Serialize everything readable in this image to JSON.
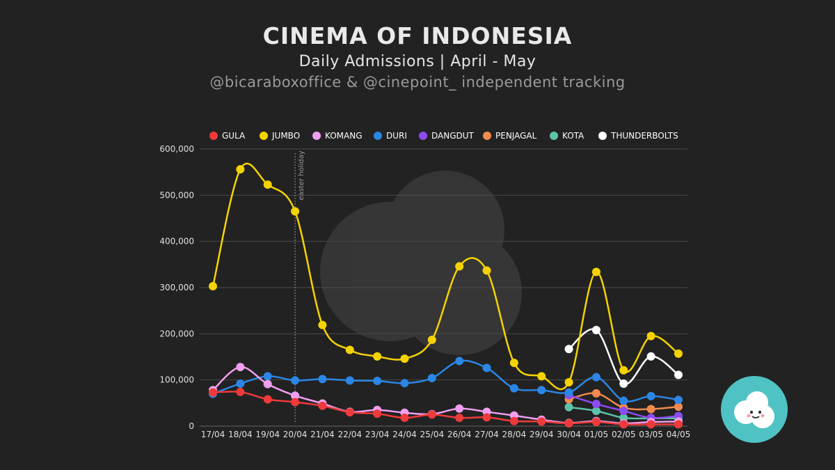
{
  "header": {
    "title": "CINEMA OF INDONESIA",
    "subtitle": "Daily Admissions | April - May",
    "credit": "@bicaraboxoffice & @cinepoint_ independent tracking"
  },
  "colors": {
    "background": "#222222",
    "grid": "#4a4a4a",
    "logo": "#4fc3c3"
  },
  "chart_data": {
    "type": "line",
    "categories": [
      "17/04",
      "18/04",
      "19/04",
      "20/04",
      "21/04",
      "22/04",
      "23/04",
      "24/04",
      "25/04",
      "26/04",
      "27/04",
      "28/04",
      "29/04",
      "30/04",
      "01/05",
      "02/05",
      "03/05",
      "04/05"
    ],
    "ylim": [
      0,
      600000
    ],
    "yticks": [
      0,
      100000,
      200000,
      300000,
      400000,
      500000,
      600000
    ],
    "ytick_labels": [
      "0",
      "100,000",
      "200,000",
      "300,000",
      "400,000",
      "500,000",
      "600,000"
    ],
    "grid": true,
    "legend": "top",
    "annotations": [
      {
        "x": "20/04",
        "label": "easter holiday",
        "style": "dotted-vertical-line"
      }
    ],
    "series": [
      {
        "name": "GULA",
        "color": "#ee3a3a",
        "values": [
          73000,
          74000,
          58000,
          52000,
          44000,
          30000,
          27000,
          18000,
          25000,
          18000,
          19000,
          11000,
          10000,
          6000,
          9000,
          4000,
          4000,
          4000
        ]
      },
      {
        "name": "JUMBO",
        "color": "#f5d300",
        "values": [
          303000,
          556000,
          523000,
          465000,
          219000,
          165000,
          151000,
          146000,
          187000,
          346000,
          337000,
          137000,
          108000,
          95000,
          334000,
          121000,
          195000,
          157000
        ]
      },
      {
        "name": "KOMANG",
        "color": "#f09ff0",
        "values": [
          78000,
          128000,
          91000,
          66000,
          49000,
          31000,
          35000,
          29000,
          26000,
          38000,
          31000,
          23000,
          14000,
          7000,
          11000,
          6000,
          9000,
          10000
        ]
      },
      {
        "name": "DURI",
        "color": "#2b86e6",
        "values": [
          70000,
          92000,
          108000,
          99000,
          102000,
          99000,
          98000,
          93000,
          104000,
          141000,
          126000,
          82000,
          78000,
          73000,
          106000,
          55000,
          65000,
          57000
        ]
      },
      {
        "name": "DANGDUT",
        "color": "#8b4cf0",
        "values": [
          null,
          null,
          null,
          null,
          null,
          null,
          null,
          null,
          null,
          null,
          null,
          null,
          null,
          67000,
          48000,
          33000,
          18000,
          22000
        ]
      },
      {
        "name": "PENJAGAL",
        "color": "#f28a4e",
        "values": [
          null,
          null,
          null,
          null,
          null,
          null,
          null,
          null,
          null,
          null,
          null,
          null,
          null,
          58000,
          71000,
          40000,
          37000,
          42000
        ]
      },
      {
        "name": "KOTA",
        "color": "#5cc3aa",
        "values": [
          null,
          null,
          null,
          null,
          null,
          null,
          null,
          null,
          null,
          null,
          null,
          null,
          null,
          41000,
          33000,
          18000,
          17000,
          17000
        ]
      },
      {
        "name": "THUNDERBOLTS",
        "color": "#ffffff",
        "values": [
          null,
          null,
          null,
          null,
          null,
          null,
          null,
          null,
          null,
          null,
          null,
          null,
          null,
          167000,
          208000,
          92000,
          151000,
          111000
        ]
      }
    ]
  }
}
